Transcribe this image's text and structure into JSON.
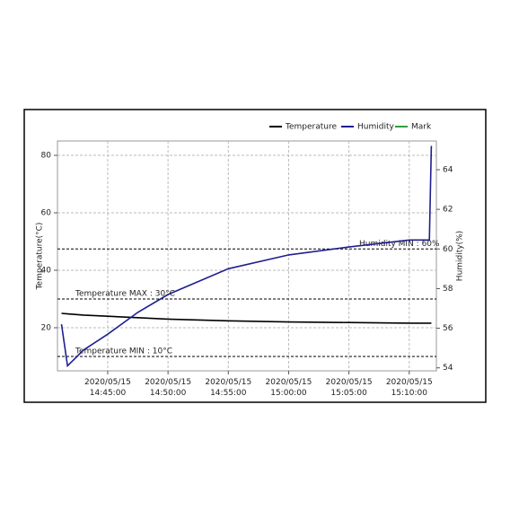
{
  "chart_data": {
    "type": "line",
    "y_label": "Temperature(°C)",
    "y2_label": "Humidity(%)",
    "x": [
      "2020/05/15 14:41:10",
      "2020/05/15 14:41:40",
      "2020/05/15 14:43:00",
      "2020/05/15 14:45:00",
      "2020/05/15 14:47:30",
      "2020/05/15 14:50:00",
      "2020/05/15 14:55:00",
      "2020/05/15 15:00:00",
      "2020/05/15 15:05:00",
      "2020/05/15 15:10:00",
      "2020/05/15 15:11:40",
      "2020/05/15 15:11:50"
    ],
    "series": [
      {
        "name": "Temperature",
        "color": "#000000",
        "values": [
          25,
          24.8,
          24.4,
          24,
          23.5,
          23,
          22.4,
          22,
          21.8,
          21.6,
          21.6,
          21.6
        ]
      },
      {
        "name": "Humidity",
        "color": "#1f1f8f",
        "axis": "y2",
        "values": [
          56.2,
          54.1,
          54.9,
          55.7,
          56.8,
          57.7,
          59.0,
          59.7,
          60.1,
          60.45,
          60.45,
          65.2
        ]
      },
      {
        "name": "Mark",
        "color": "#2e9e3e",
        "values": [
          null,
          null,
          null,
          null,
          null,
          null,
          null,
          null,
          null,
          null,
          null,
          null
        ]
      }
    ],
    "xlim": [
      "2020/05/15 14:40:50",
      "2020/05/15 15:12:15"
    ],
    "xticks": [
      "2020/05/15 14:45:00",
      "2020/05/15 14:50:00",
      "2020/05/15 14:55:00",
      "2020/05/15 15:00:00",
      "2020/05/15 15:05:00",
      "2020/05/15 15:10:00"
    ],
    "ylim": [
      5,
      85
    ],
    "yticks": [
      20,
      40,
      60,
      80
    ],
    "y2lim": [
      53.85,
      65.45
    ],
    "y2ticks": [
      54,
      56,
      58,
      60,
      62,
      64
    ],
    "reference_lines": [
      {
        "label": "Temperature MAX : 30°C",
        "value": 30,
        "axis": "y"
      },
      {
        "label": "Temperature MIN : 10°C",
        "value": 10,
        "axis": "y"
      },
      {
        "label": "Humidity MIN : 60%",
        "value": 60,
        "axis": "y2"
      }
    ],
    "grid": true
  }
}
